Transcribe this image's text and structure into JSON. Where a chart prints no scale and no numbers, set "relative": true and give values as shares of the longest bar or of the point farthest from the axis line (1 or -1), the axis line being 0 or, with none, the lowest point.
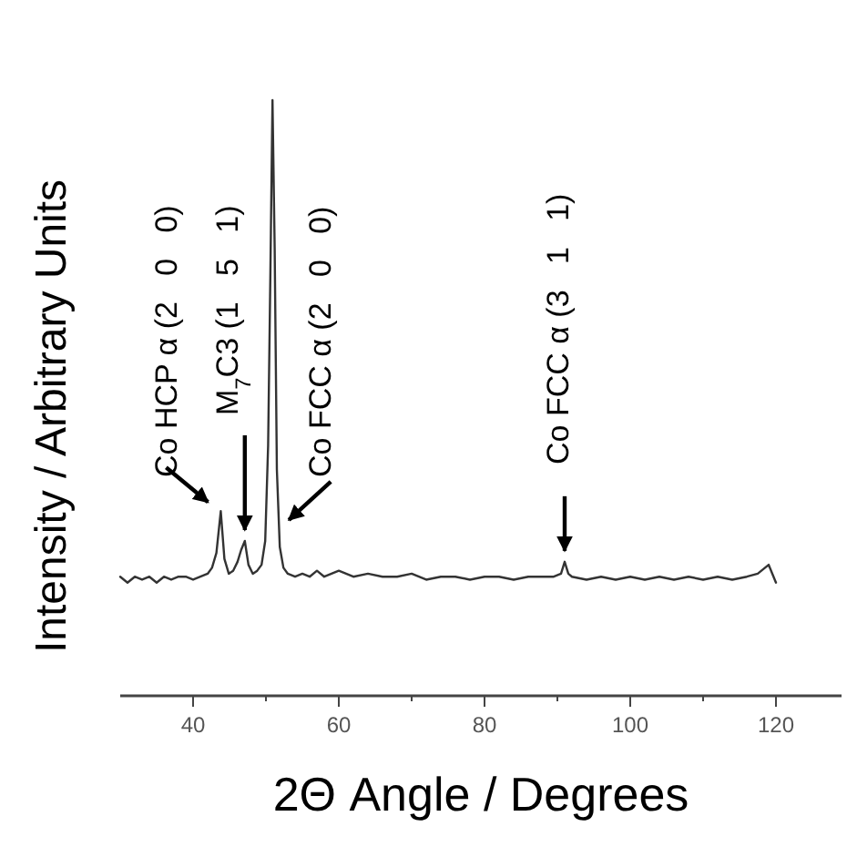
{
  "chart_data": {
    "type": "line",
    "relative": true,
    "xlabel": "2Θ Angle / Degrees",
    "ylabel": "Intensity / Arbitrary Units",
    "xlim": [
      30,
      129
    ],
    "xticks": [
      40,
      {
        "value": 50,
        "label": null
      },
      60,
      {
        "value": 70,
        "label": null
      },
      80,
      {
        "value": 90,
        "label": null
      },
      100,
      {
        "value": 110,
        "label": null
      },
      120
    ],
    "series": [
      {
        "color": "#333333",
        "x": [
          30,
          31,
          32,
          33,
          34,
          35,
          36,
          37,
          38,
          39,
          40,
          41,
          42,
          42.6,
          43.2,
          43.8,
          44.3,
          44.9,
          45.5,
          46.1,
          46.6,
          47.1,
          47.6,
          48.2,
          48.8,
          49.4,
          49.9,
          50.3,
          50.6,
          50.9,
          51.2,
          51.5,
          51.9,
          52.4,
          53,
          54,
          55,
          56,
          57,
          58,
          59,
          60,
          62,
          64,
          66,
          68,
          70,
          72,
          74,
          76,
          78,
          80,
          82,
          84,
          86,
          88,
          89.5,
          90.5,
          91,
          91.5,
          92,
          94,
          96,
          98,
          100,
          102,
          104,
          106,
          108,
          110,
          112,
          114,
          116,
          117.5,
          118.5,
          119,
          119.5,
          120
        ],
        "values": [
          0.2,
          0.19,
          0.2,
          0.195,
          0.2,
          0.19,
          0.2,
          0.195,
          0.2,
          0.2,
          0.195,
          0.2,
          0.205,
          0.215,
          0.24,
          0.31,
          0.23,
          0.205,
          0.21,
          0.225,
          0.245,
          0.26,
          0.22,
          0.205,
          0.21,
          0.22,
          0.26,
          0.42,
          0.7,
          1.0,
          0.75,
          0.38,
          0.25,
          0.215,
          0.205,
          0.2,
          0.205,
          0.2,
          0.21,
          0.2,
          0.205,
          0.21,
          0.2,
          0.205,
          0.2,
          0.2,
          0.205,
          0.195,
          0.2,
          0.2,
          0.195,
          0.2,
          0.2,
          0.195,
          0.2,
          0.2,
          0.2,
          0.205,
          0.225,
          0.205,
          0.2,
          0.195,
          0.2,
          0.195,
          0.2,
          0.195,
          0.2,
          0.195,
          0.2,
          0.195,
          0.2,
          0.195,
          0.2,
          0.205,
          0.215,
          0.22,
          0.205,
          0.19
        ]
      }
    ],
    "annotations": [
      {
        "text": "Co HCP α (2   0   0)",
        "x": 43.8,
        "y": 0.31
      },
      {
        "text": "M$_{7}$C3 (1   5   1)",
        "x": 47.1,
        "y": 0.26
      },
      {
        "text": "Co FCC α (2   0   0)",
        "x": 50.9,
        "y": 0.28
      },
      {
        "text": "Co FCC α (3   1   1)",
        "x": 91,
        "y": 0.225
      }
    ]
  }
}
